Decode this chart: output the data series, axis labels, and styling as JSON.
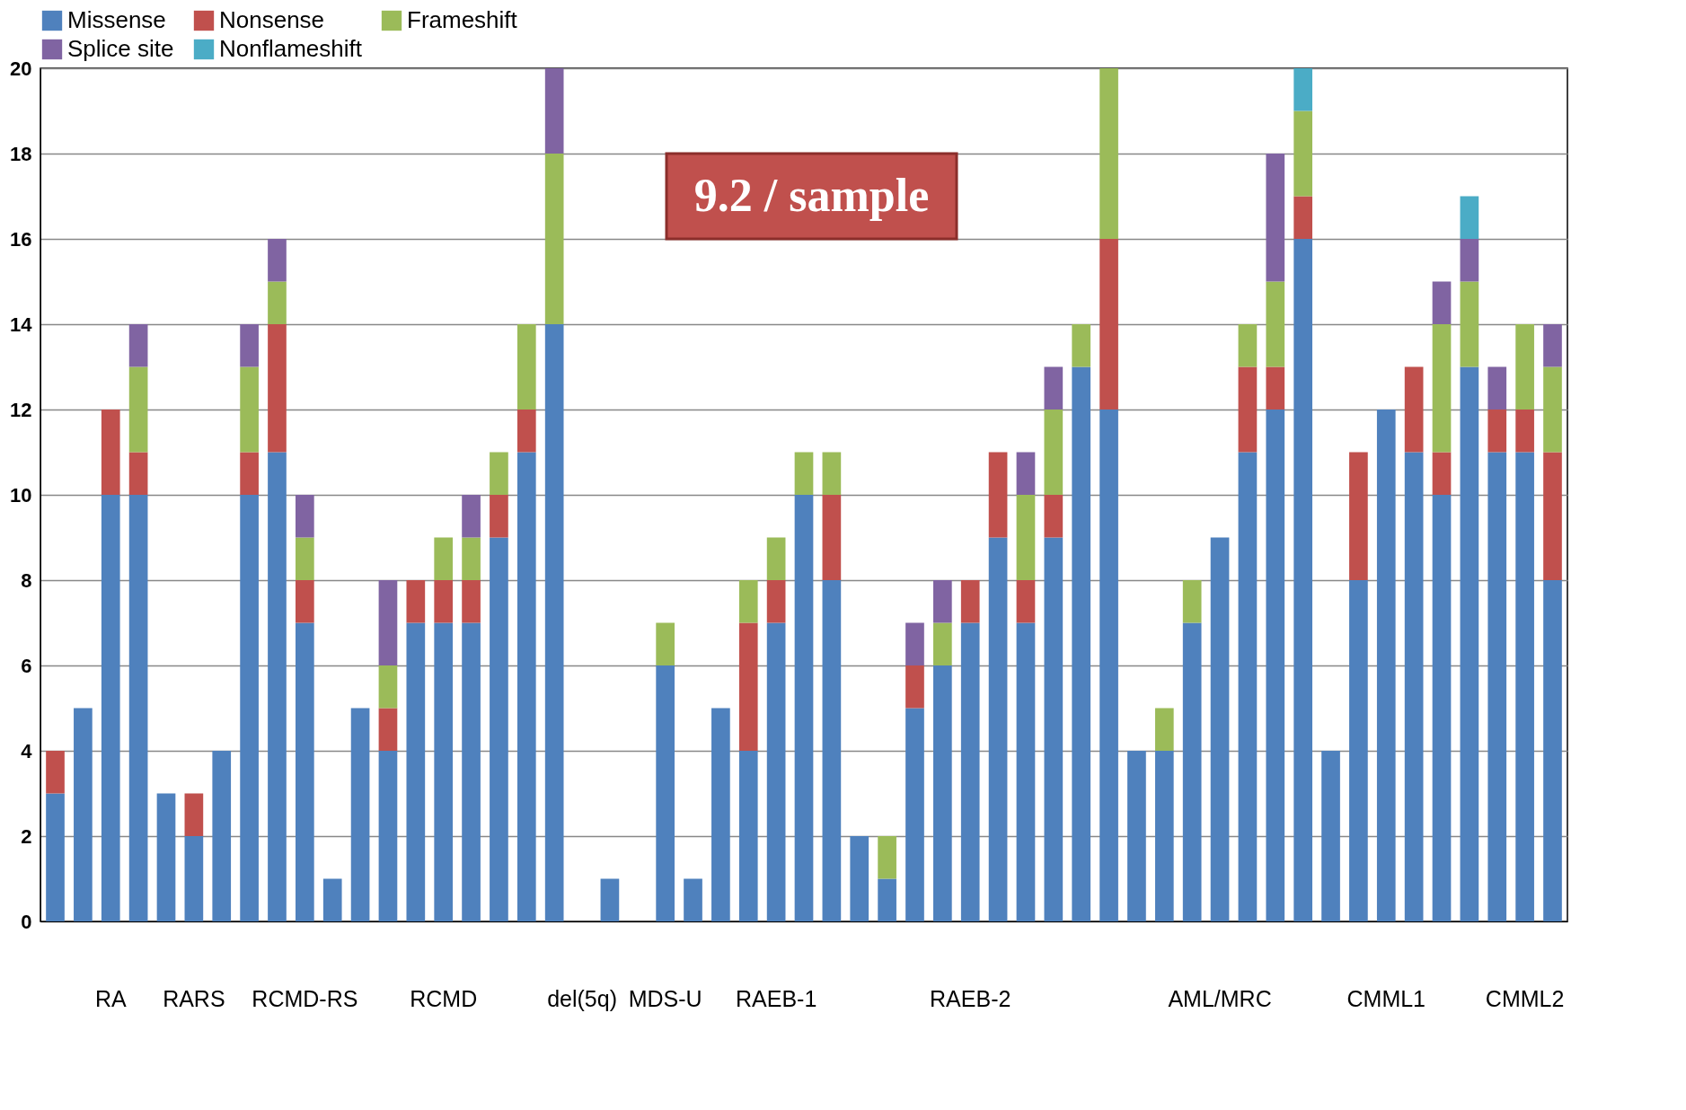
{
  "chart_data": {
    "type": "bar",
    "stacked": true,
    "categories": [
      null,
      null,
      "RA",
      null,
      null,
      "RARS",
      null,
      null,
      null,
      "RCMD-RS",
      null,
      null,
      null,
      null,
      "RCMD",
      null,
      null,
      null,
      null,
      "del(5q)",
      null,
      null,
      "MDS-U",
      null,
      null,
      null,
      "RAEB-1",
      null,
      null,
      null,
      null,
      null,
      null,
      "RAEB-2",
      null,
      null,
      null,
      null,
      null,
      null,
      null,
      null,
      "AML/MRC",
      null,
      null,
      null,
      null,
      null,
      "CMML1",
      null,
      null,
      null,
      null,
      "CMML2",
      null
    ],
    "series": [
      {
        "name": "Missense",
        "color": "#4f81bd",
        "values": [
          3,
          5,
          10,
          10,
          3,
          2,
          4,
          10,
          11,
          7,
          1,
          5,
          4,
          7,
          7,
          7,
          9,
          11,
          14,
          null,
          1,
          null,
          6,
          1,
          5,
          4,
          7,
          10,
          8,
          2,
          1,
          5,
          6,
          7,
          9,
          7,
          9,
          13,
          12,
          4,
          4,
          7,
          9,
          11,
          12,
          16,
          4,
          8,
          12,
          11,
          10,
          13,
          11,
          11,
          8
        ]
      },
      {
        "name": "Nonsense",
        "color": "#c0504d",
        "values": [
          1,
          null,
          2,
          1,
          null,
          1,
          null,
          1,
          3,
          1,
          null,
          null,
          1,
          1,
          1,
          1,
          1,
          1,
          null,
          null,
          null,
          null,
          null,
          null,
          null,
          3,
          1,
          null,
          2,
          null,
          null,
          1,
          null,
          1,
          2,
          1,
          1,
          null,
          4,
          null,
          null,
          null,
          null,
          2,
          1,
          1,
          null,
          3,
          null,
          2,
          1,
          null,
          1,
          1,
          3
        ]
      },
      {
        "name": "Frameshift",
        "color": "#9bbb59",
        "values": [
          null,
          null,
          null,
          2,
          null,
          null,
          null,
          2,
          1,
          1,
          null,
          null,
          1,
          null,
          1,
          1,
          1,
          2,
          4,
          null,
          null,
          null,
          1,
          null,
          null,
          1,
          1,
          1,
          1,
          null,
          1,
          null,
          1,
          null,
          null,
          2,
          2,
          1,
          4,
          null,
          1,
          1,
          null,
          1,
          2,
          2,
          null,
          null,
          null,
          null,
          3,
          2,
          null,
          2,
          2
        ]
      },
      {
        "name": "Splice site",
        "color": "#8064a2",
        "values": [
          null,
          null,
          null,
          1,
          null,
          null,
          null,
          1,
          1,
          1,
          null,
          null,
          2,
          null,
          null,
          1,
          null,
          null,
          2,
          null,
          null,
          null,
          null,
          null,
          null,
          null,
          null,
          null,
          null,
          null,
          null,
          1,
          1,
          null,
          null,
          1,
          1,
          null,
          null,
          null,
          null,
          null,
          null,
          null,
          3,
          null,
          null,
          null,
          null,
          null,
          1,
          1,
          1,
          null,
          1
        ]
      },
      {
        "name": "Nonflameshift",
        "color": "#4bacc6",
        "values": [
          null,
          null,
          null,
          null,
          null,
          null,
          null,
          null,
          null,
          null,
          null,
          null,
          null,
          null,
          null,
          null,
          null,
          null,
          null,
          null,
          null,
          null,
          null,
          null,
          null,
          null,
          null,
          null,
          null,
          null,
          null,
          null,
          null,
          null,
          null,
          null,
          null,
          null,
          null,
          null,
          null,
          null,
          null,
          null,
          null,
          1,
          null,
          null,
          null,
          null,
          null,
          1,
          null,
          null,
          null
        ]
      }
    ],
    "ylim": [
      0,
      20
    ],
    "yticks": [
      0,
      2,
      4,
      6,
      8,
      10,
      12,
      14,
      16,
      18,
      20
    ],
    "grid": "y",
    "legend": "top",
    "annotations": [
      "9.2 / sample"
    ]
  }
}
